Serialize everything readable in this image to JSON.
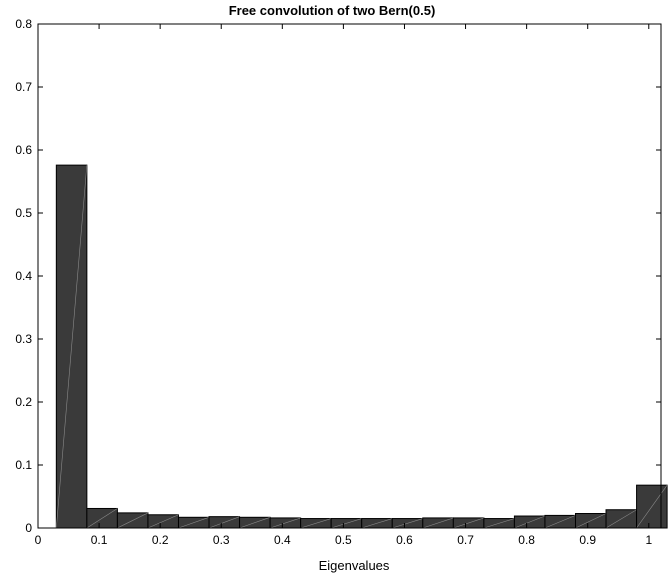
{
  "chart_data": {
    "type": "bar",
    "title": "Free convolution of two Bern(0.5)",
    "xlabel": "Eigenvalues",
    "ylabel": "",
    "xlim": [
      0,
      1.02
    ],
    "ylim": [
      0,
      0.8
    ],
    "xticks": [
      "0",
      "0.1",
      "0.2",
      "0.3",
      "0.4",
      "0.5",
      "0.6",
      "0.7",
      "0.8",
      "0.9",
      "1"
    ],
    "yticks": [
      "0",
      "0.1",
      "0.2",
      "0.3",
      "0.4",
      "0.5",
      "0.6",
      "0.7",
      "0.8"
    ],
    "bin_edges": [
      0.03,
      0.08,
      0.13,
      0.18,
      0.23,
      0.28,
      0.33,
      0.38,
      0.43,
      0.48,
      0.53,
      0.58,
      0.63,
      0.68,
      0.73,
      0.78,
      0.83,
      0.88,
      0.93,
      0.98,
      1.03
    ],
    "values": [
      0.576,
      0.031,
      0.024,
      0.021,
      0.017,
      0.018,
      0.017,
      0.016,
      0.015,
      0.015,
      0.015,
      0.015,
      0.016,
      0.016,
      0.015,
      0.019,
      0.02,
      0.023,
      0.029,
      0.068
    ],
    "bar_color": "#3a3a3a",
    "bar_edge_color": "#000000",
    "grid": false
  }
}
